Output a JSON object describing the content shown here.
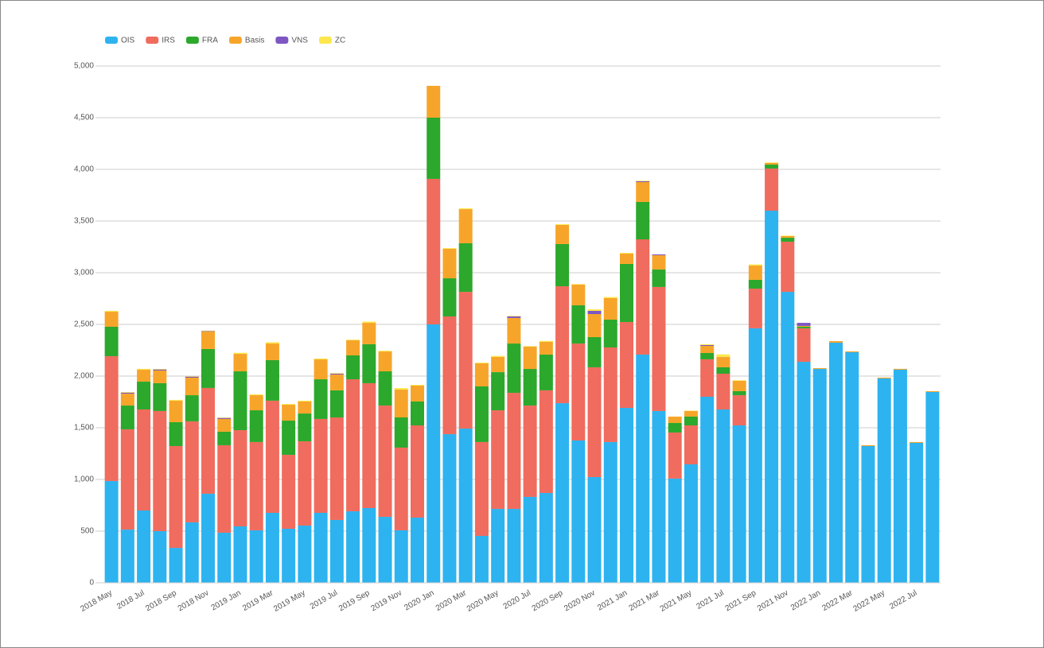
{
  "chart_data": {
    "type": "stacked-bar",
    "categories": [
      "2018 May",
      null,
      "2018 Jul",
      null,
      "2018 Sep",
      null,
      "2018 Nov",
      null,
      "2019 Jan",
      null,
      "2019 Mar",
      null,
      "2019 May",
      null,
      "2019 Jul",
      null,
      "2019 Sep",
      null,
      "2019 Nov",
      null,
      "2020 Jan",
      null,
      "2020 Mar",
      null,
      "2020 May",
      null,
      "2020 Jul",
      null,
      "2020 Sep",
      null,
      "2020 Nov",
      null,
      "2021 Jan",
      null,
      "2021 Mar",
      null,
      "2021 May",
      null,
      "2021 Jul",
      null,
      "2021 Sep",
      null,
      "2021 Nov",
      null,
      "2022 Jan",
      null,
      "2022 Mar",
      null,
      "2022 May",
      null,
      "2022 Jul",
      null
    ],
    "series": [
      {
        "name": "OIS",
        "color": "#2db3f0",
        "values": [
          985,
          515,
          700,
          500,
          338,
          585,
          862,
          485,
          546,
          508,
          677,
          523,
          554,
          677,
          608,
          692,
          723,
          638,
          508,
          631,
          2500,
          1438,
          1492,
          454,
          715,
          715,
          831,
          869,
          1738,
          1377,
          1023,
          1362,
          1692,
          2208,
          1662,
          1008,
          1146,
          1800,
          1677,
          1523,
          2462,
          3600,
          2815,
          2138,
          2069,
          2323,
          2231,
          1323,
          1977,
          2062,
          1354,
          1846
        ]
      },
      {
        "name": "IRS",
        "color": "#f06c5e",
        "values": [
          1207,
          970,
          977,
          1162,
          985,
          977,
          1023,
          846,
          931,
          854,
          1085,
          715,
          815,
          908,
          992,
          1277,
          1208,
          1077,
          800,
          892,
          1408,
          1139,
          1323,
          908,
          954,
          1123,
          884,
          993,
          1131,
          938,
          1062,
          915,
          831,
          1115,
          1200,
          446,
          377,
          362,
          346,
          292,
          384,
          408,
          485,
          324,
          0,
          0,
          0,
          0,
          0,
          0,
          0,
          0
        ]
      },
      {
        "name": "FRA",
        "color": "#2ca82c",
        "values": [
          285,
          230,
          269,
          269,
          231,
          253,
          377,
          131,
          569,
          307,
          392,
          331,
          269,
          384,
          262,
          231,
          377,
          331,
          292,
          231,
          592,
          369,
          470,
          538,
          369,
          477,
          354,
          346,
          408,
          370,
          292,
          269,
          562,
          362,
          169,
          92,
          85,
          61,
          62,
          39,
          85,
          38,
          38,
          15,
          0,
          0,
          0,
          0,
          0,
          0,
          0,
          0
        ]
      },
      {
        "name": "Basis",
        "color": "#f7a52a",
        "values": [
          146,
          115,
          116,
          123,
          208,
          170,
          169,
          123,
          169,
          146,
          161,
          154,
          116,
          193,
          153,
          146,
          207,
          192,
          269,
          154,
          308,
          285,
          330,
          223,
          147,
          247,
          216,
          123,
          185,
          200,
          223,
          208,
          100,
          192,
          138,
          62,
          54,
          69,
          100,
          100,
          138,
          16,
          16,
          8,
          8,
          15,
          8,
          8,
          8,
          8,
          8,
          8
        ]
      },
      {
        "name": "VNS",
        "color": "#7e57c2",
        "values": [
          0,
          10,
          0,
          10,
          0,
          10,
          5,
          10,
          0,
          0,
          0,
          0,
          0,
          0,
          8,
          0,
          0,
          0,
          0,
          0,
          0,
          0,
          0,
          0,
          0,
          15,
          0,
          0,
          0,
          0,
          31,
          0,
          0,
          8,
          8,
          0,
          0,
          8,
          0,
          0,
          0,
          0,
          0,
          30,
          0,
          0,
          0,
          0,
          0,
          0,
          0,
          0
        ]
      },
      {
        "name": "ZC",
        "color": "#fde74c",
        "values": [
          8,
          6,
          8,
          5,
          8,
          5,
          4,
          5,
          10,
          8,
          12,
          7,
          8,
          8,
          5,
          6,
          12,
          7,
          15,
          7,
          0,
          7,
          8,
          7,
          10,
          5,
          5,
          9,
          8,
          5,
          15,
          11,
          7,
          5,
          0,
          0,
          4,
          8,
          25,
          5,
          11,
          5,
          5,
          0,
          0,
          0,
          0,
          0,
          0,
          0,
          0,
          0
        ]
      }
    ],
    "ylim": [
      0,
      5000
    ],
    "yticks": [
      0,
      500,
      {
        "value": 1000,
        "label": "1,000"
      },
      {
        "value": 1500,
        "label": "1,500"
      },
      {
        "value": 2000,
        "label": "2,000"
      },
      {
        "value": 2500,
        "label": "2,500"
      },
      {
        "value": 3000,
        "label": "3,000"
      },
      {
        "value": 3500,
        "label": "3,500"
      },
      {
        "value": 4000,
        "label": "4,000"
      },
      {
        "value": 4500,
        "label": "4,500"
      },
      {
        "value": 5000,
        "label": "5,000"
      }
    ],
    "grid": true,
    "legend": "top-left"
  }
}
